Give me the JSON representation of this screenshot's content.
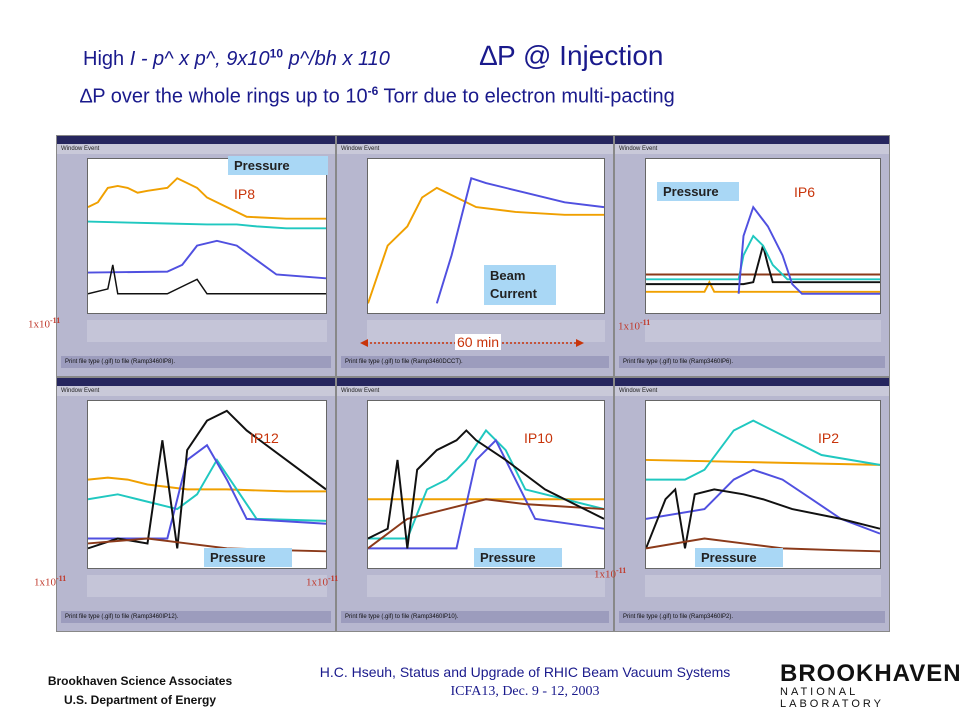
{
  "header": {
    "line1_prefix": "High ",
    "line1_italic": "I",
    "line1_mid": " - p^ x p^, 9x10",
    "line1_exp": "10",
    "line1_suffix": " p^/bh x 110",
    "line1_right": "∆P @ Injection",
    "line2_prefix": "∆P over the whole rings up to 10",
    "line2_exp": "-6",
    "line2_suffix": " Torr due to electron multi-pacting"
  },
  "panels": [
    {
      "id": "ip8",
      "tag": "IP8",
      "box": "Pressure",
      "scale_base": "1x10",
      "scale_exp": "-11",
      "footer": "Print file type (.gif) to file (Ramp3460IP8)."
    },
    {
      "id": "dcct",
      "tag": "",
      "box": "Beam Current",
      "scale_base": "",
      "scale_exp": "",
      "footer": "Print file type (.gif) to file (Ramp3460DCCT)."
    },
    {
      "id": "ip6",
      "tag": "IP6",
      "box": "Pressure",
      "scale_base": "1x10",
      "scale_exp": "-11",
      "footer": "Print file type (.gif) to file (Ramp3460IP6)."
    },
    {
      "id": "ip12",
      "tag": "IP12",
      "box": "Pressure",
      "scale_base": "1x10",
      "scale_exp": "-11",
      "footer": "Print file type (.gif) to file (Ramp3460IP12)."
    },
    {
      "id": "ip10",
      "tag": "IP10",
      "box": "Pressure",
      "scale_base": "1x10",
      "scale_exp": "-11",
      "footer": "Print file type (.gif) to file (Ramp3460IP10)."
    },
    {
      "id": "ip2",
      "tag": "IP2",
      "box": "Pressure",
      "scale_base": "1x10",
      "scale_exp": "-11",
      "footer": "Print file type (.gif) to file (Ramp3460IP2)."
    }
  ],
  "window_menu": "Window   Event",
  "duration_label": "60 min",
  "footer": {
    "org1": "Brookhaven Science Associates",
    "org2": "U.S. Department of Energy",
    "talk": "H.C. Hseuh, Status and Upgrade of RHIC Beam Vacuum Systems",
    "conf": "ICFA13, Dec. 9 - 12, 2003",
    "logo1": "BROOKHAVEN",
    "logo2": "NATIONAL LABORATORY"
  },
  "colors": {
    "title": "#1a1a8c",
    "accent": "#c8340a",
    "orange": "#f0a000",
    "cyan": "#20c8c0",
    "blue": "#5050e0",
    "black": "#111111",
    "brown": "#8b3a1a",
    "box": "#a9d7f5"
  }
}
